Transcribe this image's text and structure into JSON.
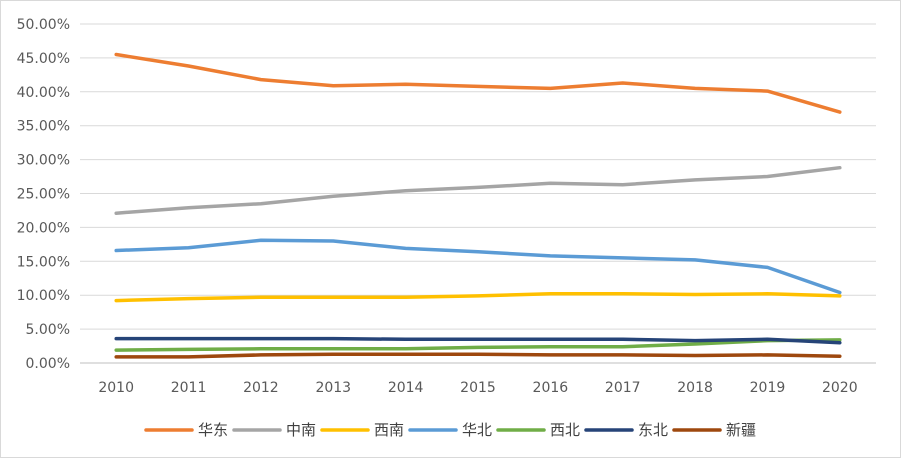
{
  "chart_data": {
    "type": "line",
    "title": "",
    "xlabel": "",
    "ylabel": "",
    "x": [
      "2010",
      "2011",
      "2012",
      "2013",
      "2014",
      "2015",
      "2016",
      "2017",
      "2018",
      "2019",
      "2020"
    ],
    "ylim": [
      0,
      50
    ],
    "y_ticks": [
      "0.00%",
      "5.00%",
      "10.00%",
      "15.00%",
      "20.00%",
      "25.00%",
      "30.00%",
      "35.00%",
      "40.00%",
      "45.00%",
      "50.00%"
    ],
    "y_tick_values": [
      0,
      5,
      10,
      15,
      20,
      25,
      30,
      35,
      40,
      45,
      50
    ],
    "grid": true,
    "legend_position": "bottom",
    "series": [
      {
        "name": "华东",
        "color": "#ED7D31",
        "values": [
          45.5,
          43.8,
          41.8,
          40.9,
          41.1,
          40.8,
          40.5,
          41.3,
          40.5,
          40.1,
          37.0
        ]
      },
      {
        "name": "中南",
        "color": "#A5A5A5",
        "values": [
          22.1,
          22.9,
          23.5,
          24.6,
          25.4,
          25.9,
          26.5,
          26.3,
          27.0,
          27.5,
          28.8
        ]
      },
      {
        "name": "西南",
        "color": "#FFC000",
        "values": [
          9.2,
          9.5,
          9.7,
          9.7,
          9.7,
          9.9,
          10.2,
          10.2,
          10.1,
          10.2,
          9.9
        ]
      },
      {
        "name": "华北",
        "color": "#5B9BD5",
        "values": [
          16.6,
          17.0,
          18.1,
          18.0,
          16.9,
          16.4,
          15.8,
          15.5,
          15.2,
          14.1,
          10.4
        ]
      },
      {
        "name": "西北",
        "color": "#70AD47",
        "values": [
          1.9,
          2.0,
          2.1,
          2.1,
          2.1,
          2.3,
          2.4,
          2.4,
          2.8,
          3.3,
          3.4
        ]
      },
      {
        "name": "东北",
        "color": "#264478",
        "values": [
          3.6,
          3.6,
          3.6,
          3.6,
          3.5,
          3.5,
          3.5,
          3.5,
          3.3,
          3.5,
          3.0
        ]
      },
      {
        "name": "新疆",
        "color": "#9E480E",
        "values": [
          0.9,
          0.9,
          1.2,
          1.3,
          1.3,
          1.3,
          1.2,
          1.2,
          1.1,
          1.2,
          1.0
        ]
      }
    ]
  }
}
